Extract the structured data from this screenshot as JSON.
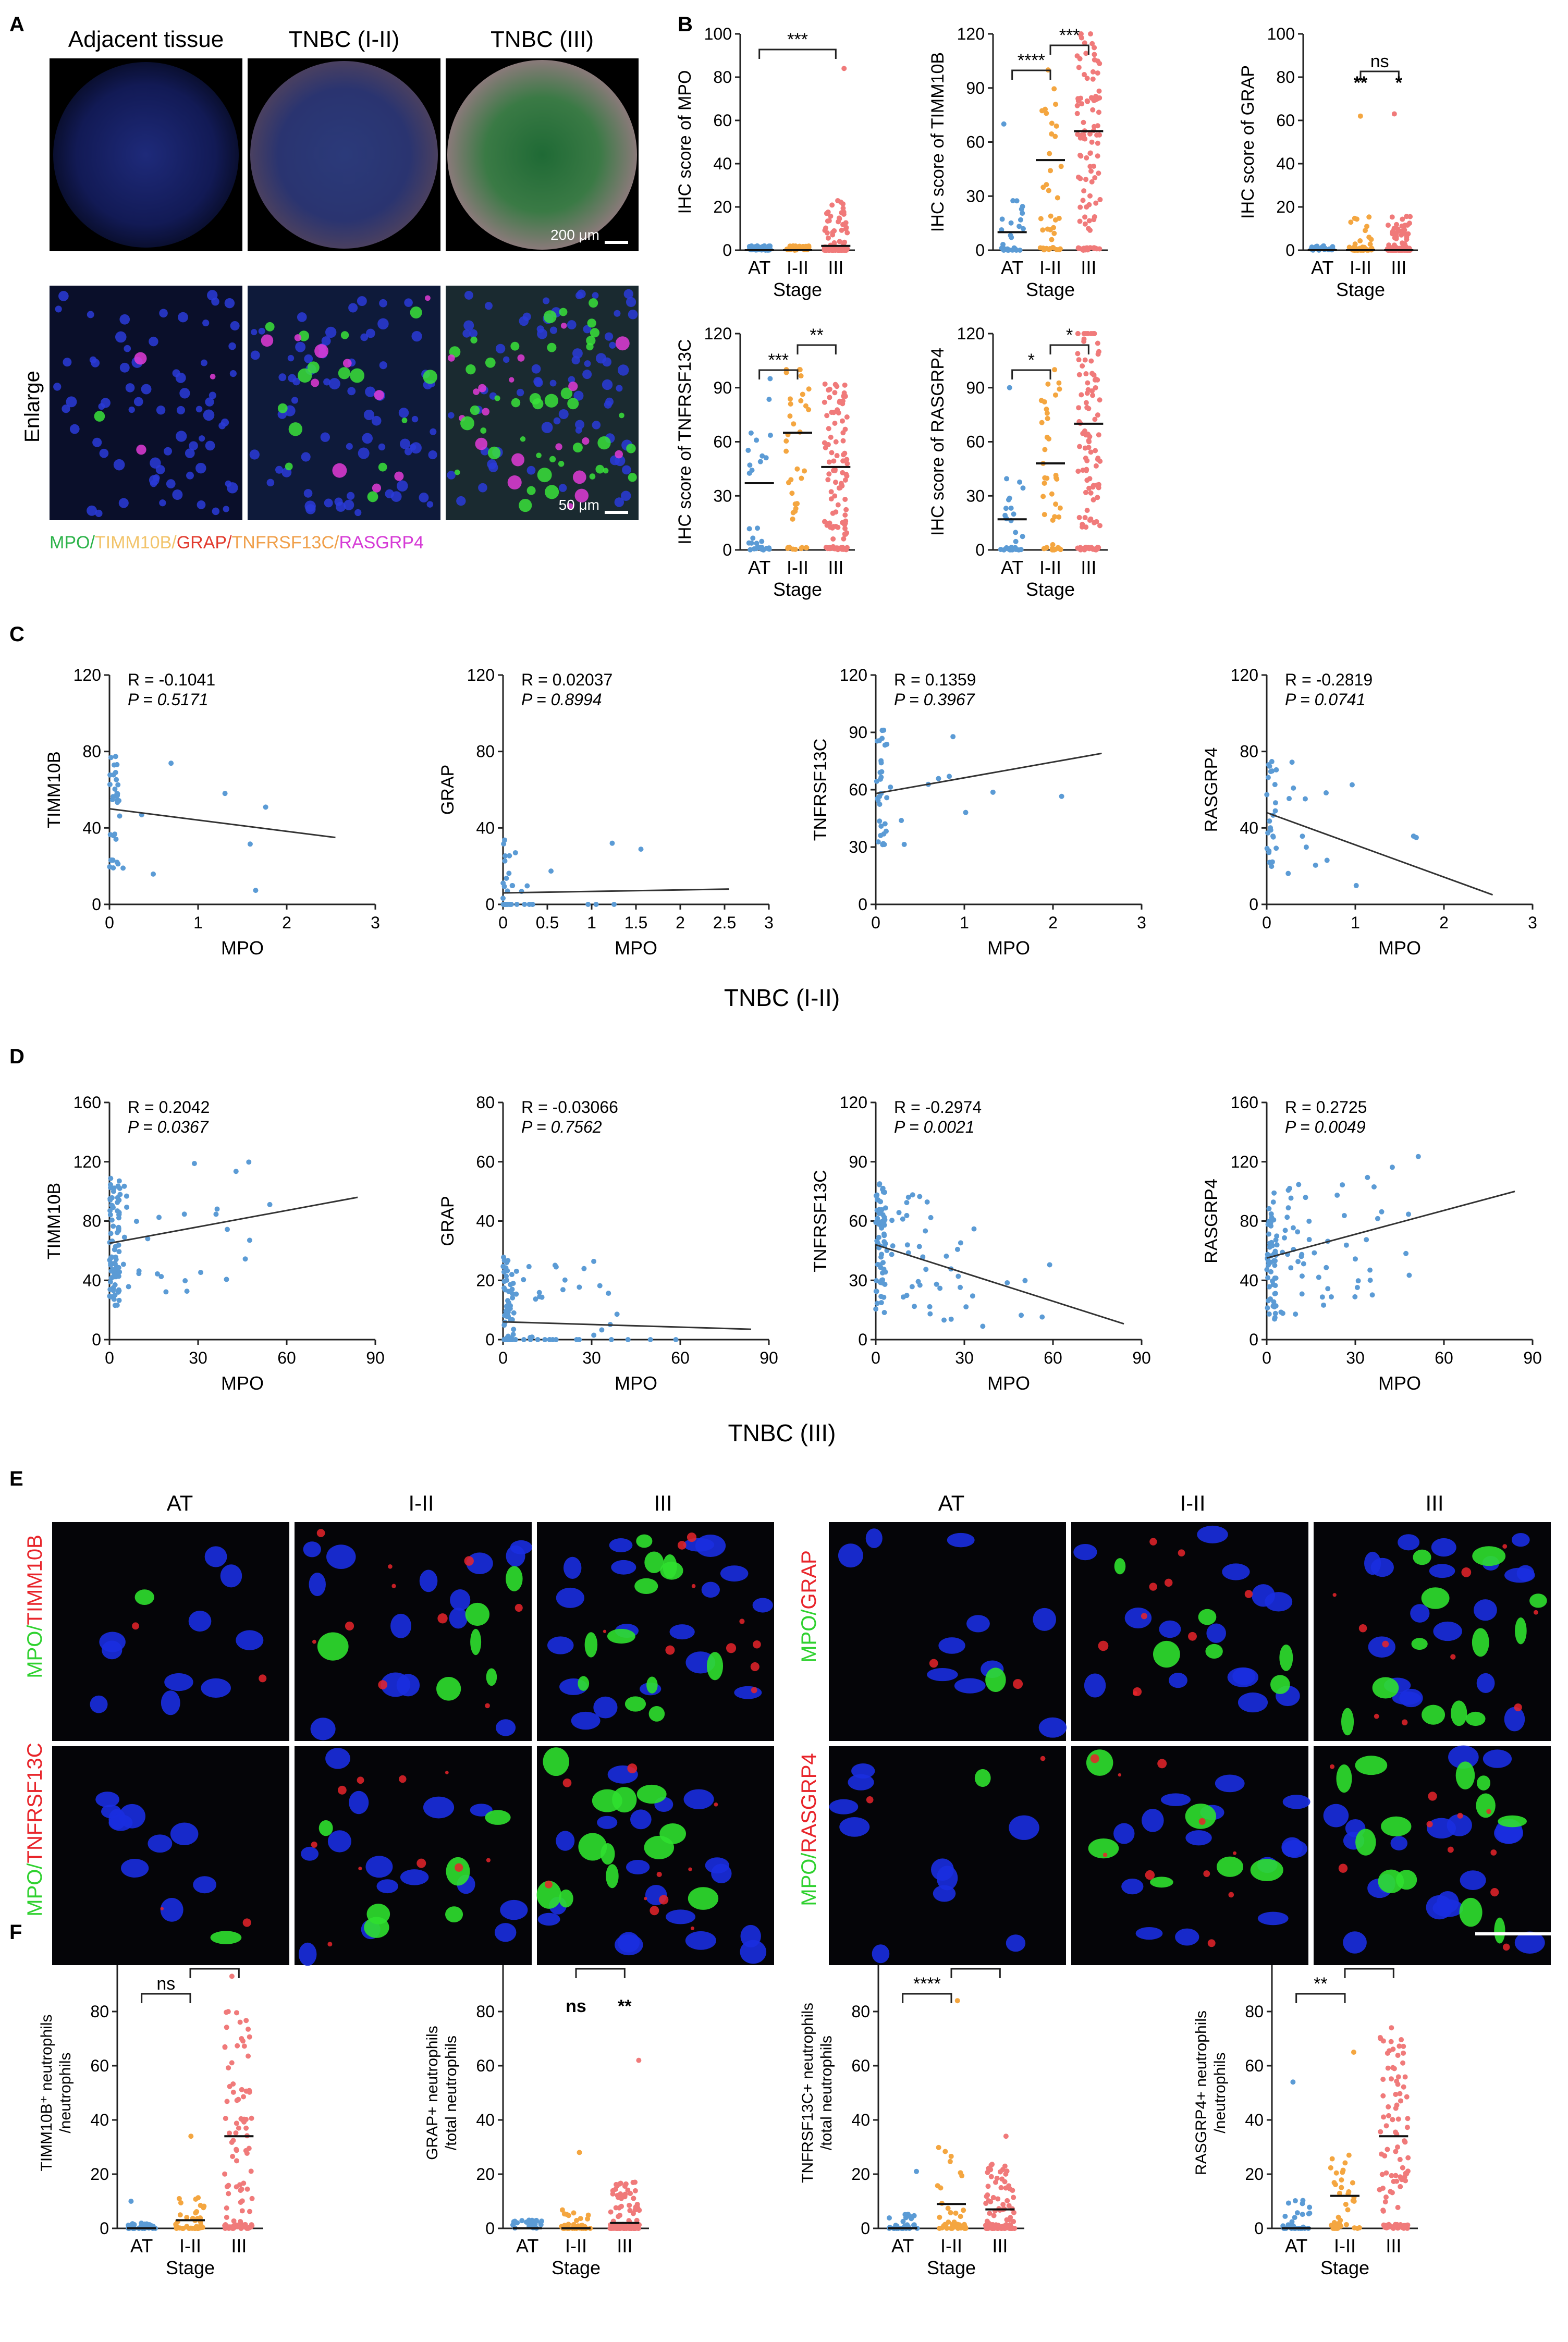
{
  "panel_labels": {
    "A": "A",
    "B": "B",
    "C": "C",
    "D": "D",
    "E": "E",
    "F": "F"
  },
  "panel_A": {
    "columns": [
      "Adjacent tissue",
      "TNBC (I-II)",
      "TNBC (III)"
    ],
    "row_label": "Enlarge",
    "scale_top": "200 μm",
    "scale_bottom": "50 μm",
    "legend": [
      {
        "text": "MPO/",
        "color": "#2db34a"
      },
      {
        "text": "TIMM10B/",
        "color": "#f2c46b"
      },
      {
        "text": "GRAP/",
        "color": "#e23b2e"
      },
      {
        "text": "TNFRSF13C/",
        "color": "#f0a04b"
      },
      {
        "text": "RASGRP4",
        "color": "#d63bd6"
      }
    ]
  },
  "colors": {
    "AT": "#5b9bd5",
    "I-II": "#f4a640",
    "III": "#f07a7a",
    "fit_line": "#333333",
    "stain_green": "#2fd12f",
    "stain_red": "#e8242a"
  },
  "panel_C": {
    "footer": "TNBC (I-II)"
  },
  "panel_D": {
    "footer": "TNBC (III)"
  },
  "panel_E": {
    "col_labels": [
      "AT",
      "I-II",
      "III",
      "AT",
      "I-II",
      "III"
    ],
    "row_labels": [
      {
        "green": "MPO/",
        "red": "TIMM10B"
      },
      {
        "green": "MPO/",
        "red": "TNFRSF13C"
      },
      {
        "green": "MPO/",
        "red": "GRAP"
      },
      {
        "green": "MPO/",
        "red": "RASGRP4"
      }
    ]
  },
  "chart_data": [
    {
      "panel": "B",
      "type": "scatter",
      "ylabel": "IHC score of MPO",
      "xlabel": "Stage",
      "categories": [
        "AT",
        "I-II",
        "III"
      ],
      "ylim": [
        0,
        100
      ],
      "yticks": [
        0,
        20,
        40,
        60,
        80,
        100
      ],
      "medians": [
        0,
        0,
        2
      ],
      "group_sizes": [
        30,
        40,
        110
      ],
      "value_ranges": [
        [
          0,
          2
        ],
        [
          0,
          2
        ],
        [
          0,
          84
        ]
      ],
      "annotations": [
        {
          "text": "***",
          "from": "AT",
          "to": "III"
        }
      ]
    },
    {
      "panel": "B",
      "type": "scatter",
      "ylabel": "IHC score of TIMM10B",
      "xlabel": "Stage",
      "categories": [
        "AT",
        "I-II",
        "III"
      ],
      "ylim": [
        0,
        120
      ],
      "yticks": [
        0,
        30,
        60,
        90,
        120
      ],
      "medians": [
        10,
        50,
        66
      ],
      "group_sizes": [
        30,
        40,
        110
      ],
      "value_ranges": [
        [
          0,
          70
        ],
        [
          0,
          100
        ],
        [
          0,
          120
        ]
      ],
      "annotations": [
        {
          "text": "****",
          "from": "AT",
          "to": "I-II"
        },
        {
          "text": "***",
          "from": "I-II",
          "to": "III"
        }
      ]
    },
    {
      "panel": "B",
      "type": "scatter",
      "ylabel": "IHC score of GRAP",
      "xlabel": "Stage",
      "categories": [
        "AT",
        "I-II",
        "III"
      ],
      "ylim": [
        0,
        100
      ],
      "yticks": [
        0,
        20,
        40,
        60,
        80,
        100
      ],
      "medians": [
        0,
        0,
        0
      ],
      "group_sizes": [
        30,
        40,
        110
      ],
      "value_ranges": [
        [
          0,
          2
        ],
        [
          0,
          62
        ],
        [
          0,
          63
        ]
      ],
      "annotations": [
        {
          "text": "ns",
          "from": "I-II",
          "to": "III"
        },
        {
          "text": "**",
          "at": "I-II"
        },
        {
          "text": "*",
          "at": "III"
        }
      ]
    },
    {
      "panel": "B",
      "type": "scatter",
      "ylabel": "IHC score of TNFRSF13C",
      "xlabel": "Stage",
      "categories": [
        "AT",
        "I-II",
        "III"
      ],
      "ylim": [
        0,
        120
      ],
      "yticks": [
        0,
        30,
        60,
        90,
        120
      ],
      "medians": [
        37,
        65,
        46
      ],
      "group_sizes": [
        30,
        40,
        110
      ],
      "value_ranges": [
        [
          0,
          95
        ],
        [
          0,
          100
        ],
        [
          0,
          92
        ]
      ],
      "annotations": [
        {
          "text": "***",
          "from": "AT",
          "to": "I-II"
        },
        {
          "text": "**",
          "from": "I-II",
          "to": "III"
        }
      ]
    },
    {
      "panel": "B",
      "type": "scatter",
      "ylabel": "IHC score of RASGRP4",
      "xlabel": "Stage",
      "categories": [
        "AT",
        "I-II",
        "III"
      ],
      "ylim": [
        0,
        120
      ],
      "yticks": [
        0,
        30,
        60,
        90,
        120
      ],
      "medians": [
        17,
        48,
        70
      ],
      "group_sizes": [
        30,
        40,
        110
      ],
      "value_ranges": [
        [
          0,
          90
        ],
        [
          0,
          100
        ],
        [
          0,
          120
        ]
      ],
      "annotations": [
        {
          "text": "*",
          "from": "AT",
          "to": "I-II"
        },
        {
          "text": "*",
          "from": "I-II",
          "to": "III"
        }
      ]
    },
    {
      "panel": "C",
      "type": "scatter",
      "xlabel": "MPO",
      "ylabel": "TIMM10B",
      "xlim": [
        0,
        3
      ],
      "ylim": [
        0,
        120
      ],
      "xticks": [
        0,
        1,
        2,
        3
      ],
      "yticks": [
        0,
        40,
        80,
        120
      ],
      "stat": [
        "R = -0.1041",
        "P = 0.5171"
      ],
      "fit": [
        [
          0,
          50
        ],
        [
          2.55,
          35
        ]
      ],
      "n": 40
    },
    {
      "panel": "C",
      "type": "scatter",
      "xlabel": "MPO",
      "ylabel": "GRAP",
      "xlim": [
        0,
        3
      ],
      "ylim": [
        0,
        120
      ],
      "xticks": [
        0,
        0.5,
        1,
        1.5,
        2,
        2.5,
        3
      ],
      "yticks": [
        0,
        40,
        80,
        120
      ],
      "stat": [
        "R = 0.02037",
        "P = 0.8994"
      ],
      "fit": [
        [
          0,
          6
        ],
        [
          2.55,
          8
        ]
      ],
      "n": 40
    },
    {
      "panel": "C",
      "type": "scatter",
      "xlabel": "MPO",
      "ylabel": "TNFRSF13C",
      "xlim": [
        0,
        3
      ],
      "ylim": [
        0,
        120
      ],
      "xticks": [
        0,
        1,
        2,
        3
      ],
      "yticks": [
        0,
        30,
        60,
        90,
        120
      ],
      "stat": [
        "R = 0.1359",
        "P = 0.3967"
      ],
      "fit": [
        [
          0,
          58
        ],
        [
          2.55,
          79
        ]
      ],
      "n": 40
    },
    {
      "panel": "C",
      "type": "scatter",
      "xlabel": "MPO",
      "ylabel": "RASGRP4",
      "xlim": [
        0,
        3
      ],
      "ylim": [
        0,
        120
      ],
      "xticks": [
        0,
        1,
        2,
        3
      ],
      "yticks": [
        0,
        40,
        80,
        120
      ],
      "stat": [
        "R = -0.2819",
        "P = 0.0741"
      ],
      "fit": [
        [
          0,
          48
        ],
        [
          2.55,
          5
        ]
      ],
      "n": 40
    },
    {
      "panel": "D",
      "type": "scatter",
      "xlabel": "MPO",
      "ylabel": "TIMM10B",
      "xlim": [
        0,
        90
      ],
      "ylim": [
        0,
        160
      ],
      "xticks": [
        0,
        30,
        60,
        90
      ],
      "yticks": [
        0,
        40,
        80,
        120,
        160
      ],
      "stat": [
        "R = 0.2042",
        "P = 0.0367"
      ],
      "fit": [
        [
          0,
          65
        ],
        [
          84,
          96
        ]
      ],
      "n": 110
    },
    {
      "panel": "D",
      "type": "scatter",
      "xlabel": "MPO",
      "ylabel": "GRAP",
      "xlim": [
        0,
        90
      ],
      "ylim": [
        0,
        80
      ],
      "xticks": [
        0,
        30,
        60,
        90
      ],
      "yticks": [
        0,
        20,
        40,
        60,
        80
      ],
      "stat": [
        "R = -0.03066",
        "P = 0.7562"
      ],
      "fit": [
        [
          0,
          6
        ],
        [
          84,
          3.5
        ]
      ],
      "n": 110
    },
    {
      "panel": "D",
      "type": "scatter",
      "xlabel": "MPO",
      "ylabel": "TNFRSF13C",
      "xlim": [
        0,
        90
      ],
      "ylim": [
        0,
        120
      ],
      "xticks": [
        0,
        30,
        60,
        90
      ],
      "yticks": [
        0,
        30,
        60,
        90,
        120
      ],
      "stat": [
        "R = -0.2974",
        "P = 0.0021"
      ],
      "fit": [
        [
          0,
          48
        ],
        [
          84,
          8
        ]
      ],
      "n": 110
    },
    {
      "panel": "D",
      "type": "scatter",
      "xlabel": "MPO",
      "ylabel": "RASGRP4",
      "xlim": [
        0,
        90
      ],
      "ylim": [
        0,
        160
      ],
      "xticks": [
        0,
        30,
        60,
        90
      ],
      "yticks": [
        0,
        40,
        80,
        120,
        160
      ],
      "stat": [
        "R = 0.2725",
        "P = 0.0049"
      ],
      "fit": [
        [
          0,
          55
        ],
        [
          84,
          100
        ]
      ],
      "n": 110
    },
    {
      "panel": "F",
      "type": "scatter",
      "ylabel": "TIMM10B⁺ neutrophils /neutrophils",
      "xlabel": "Stage",
      "categories": [
        "AT",
        "I-II",
        "III"
      ],
      "ylim": [
        0,
        100
      ],
      "yticks": [
        0,
        20,
        40,
        60,
        80,
        100
      ],
      "medians": [
        0,
        3,
        34
      ],
      "group_sizes": [
        30,
        40,
        110
      ],
      "value_ranges": [
        [
          0,
          10
        ],
        [
          0,
          34
        ],
        [
          0,
          93
        ]
      ],
      "annotations": [
        {
          "text": "ns",
          "from": "AT",
          "to": "I-II"
        },
        {
          "text": "***",
          "from": "I-II",
          "to": "III"
        }
      ]
    },
    {
      "panel": "F",
      "type": "scatter",
      "ylabel": "GRAP+ neutrophils /total neutrophils",
      "xlabel": "Stage",
      "categories": [
        "AT",
        "I-II",
        "III"
      ],
      "ylim": [
        0,
        100
      ],
      "yticks": [
        0,
        20,
        40,
        60,
        80,
        100
      ],
      "medians": [
        0,
        0,
        2
      ],
      "group_sizes": [
        30,
        40,
        110
      ],
      "value_ranges": [
        [
          0,
          3
        ],
        [
          0,
          28
        ],
        [
          0,
          62
        ]
      ],
      "annotations": [
        {
          "text": "*",
          "from": "I-II",
          "to": "III"
        },
        {
          "text": "ns",
          "at": "I-II"
        },
        {
          "text": "**",
          "at": "III"
        }
      ]
    },
    {
      "panel": "F",
      "type": "scatter",
      "ylabel": "TNFRSF13C+ neutrophils /total neutrophils",
      "xlabel": "Stage",
      "categories": [
        "AT",
        "I-II",
        "III"
      ],
      "ylim": [
        0,
        100
      ],
      "yticks": [
        0,
        20,
        40,
        60,
        80,
        100
      ],
      "medians": [
        0,
        9,
        7
      ],
      "group_sizes": [
        30,
        40,
        110
      ],
      "value_ranges": [
        [
          0,
          21
        ],
        [
          0,
          84
        ],
        [
          0,
          34
        ]
      ],
      "annotations": [
        {
          "text": "****",
          "from": "AT",
          "to": "I-II"
        },
        {
          "text": "****",
          "from": "I-II",
          "to": "III"
        }
      ]
    },
    {
      "panel": "F",
      "type": "scatter",
      "ylabel": "RASGRP4+ neutrophils /neutrophils",
      "xlabel": "Stage",
      "categories": [
        "AT",
        "I-II",
        "III"
      ],
      "ylim": [
        0,
        100
      ],
      "yticks": [
        0,
        20,
        40,
        60,
        80,
        100
      ],
      "medians": [
        0,
        12,
        34
      ],
      "group_sizes": [
        30,
        40,
        110
      ],
      "value_ranges": [
        [
          0,
          54
        ],
        [
          0,
          65
        ],
        [
          0,
          74
        ]
      ],
      "annotations": [
        {
          "text": "**",
          "from": "AT",
          "to": "I-II"
        },
        {
          "text": "**",
          "from": "I-II",
          "to": "III"
        }
      ]
    }
  ]
}
